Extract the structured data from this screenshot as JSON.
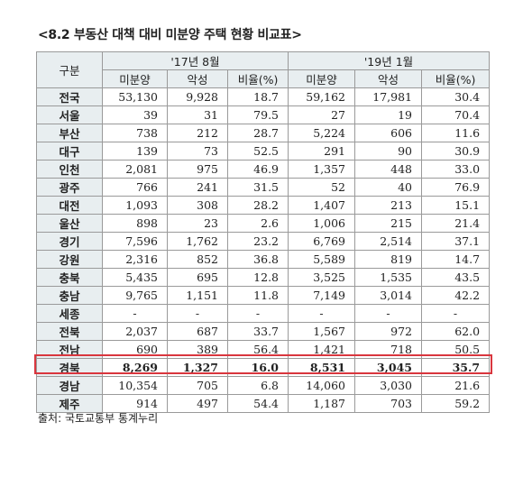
{
  "title": "<8.2 부동산 대책 대비 미분양 주택 현황 비교표>",
  "table": {
    "region_header": "구분",
    "period1": "'17년 8월",
    "period2": "'19년 1월",
    "sub_headers": [
      "미분양",
      "악성",
      "비율(%)",
      "미분양",
      "악성",
      "비율(%)"
    ],
    "rows": [
      {
        "region": "전국",
        "v": [
          "53,130",
          "9,928",
          "18.7",
          "59,162",
          "17,981",
          "30.4"
        ]
      },
      {
        "region": "서울",
        "v": [
          "39",
          "31",
          "79.5",
          "27",
          "19",
          "70.4"
        ]
      },
      {
        "region": "부산",
        "v": [
          "738",
          "212",
          "28.7",
          "5,224",
          "606",
          "11.6"
        ]
      },
      {
        "region": "대구",
        "v": [
          "139",
          "73",
          "52.5",
          "291",
          "90",
          "30.9"
        ]
      },
      {
        "region": "인천",
        "v": [
          "2,081",
          "975",
          "46.9",
          "1,357",
          "448",
          "33.0"
        ]
      },
      {
        "region": "광주",
        "v": [
          "766",
          "241",
          "31.5",
          "52",
          "40",
          "76.9"
        ]
      },
      {
        "region": "대전",
        "v": [
          "1,093",
          "308",
          "28.2",
          "1,407",
          "213",
          "15.1"
        ]
      },
      {
        "region": "울산",
        "v": [
          "898",
          "23",
          "2.6",
          "1,006",
          "215",
          "21.4"
        ]
      },
      {
        "region": "경기",
        "v": [
          "7,596",
          "1,762",
          "23.2",
          "6,769",
          "2,514",
          "37.1"
        ]
      },
      {
        "region": "강원",
        "v": [
          "2,316",
          "852",
          "36.8",
          "5,589",
          "819",
          "14.7"
        ]
      },
      {
        "region": "충북",
        "v": [
          "5,435",
          "695",
          "12.8",
          "3,525",
          "1,535",
          "43.5"
        ]
      },
      {
        "region": "충남",
        "v": [
          "9,765",
          "1,151",
          "11.8",
          "7,149",
          "3,014",
          "42.2"
        ]
      },
      {
        "region": "세종",
        "v": [
          "-",
          "-",
          "-",
          "-",
          "-",
          "-"
        ]
      },
      {
        "region": "전북",
        "v": [
          "2,037",
          "687",
          "33.7",
          "1,567",
          "972",
          "62.0"
        ]
      },
      {
        "region": "전남",
        "v": [
          "690",
          "389",
          "56.4",
          "1,421",
          "718",
          "50.5"
        ]
      },
      {
        "region": "경북",
        "v": [
          "8,269",
          "1,327",
          "16.0",
          "8,531",
          "3,045",
          "35.7"
        ]
      },
      {
        "region": "경남",
        "v": [
          "10,354",
          "705",
          "6.8",
          "14,060",
          "3,030",
          "21.6"
        ]
      },
      {
        "region": "제주",
        "v": [
          "914",
          "497",
          "54.4",
          "1,187",
          "703",
          "59.2"
        ]
      }
    ]
  },
  "source": "출처: 국토교통부 통계누리",
  "colors": {
    "header_bg": "#e8eef0",
    "highlight": "#d9363e",
    "border": "#9a9a9a"
  }
}
